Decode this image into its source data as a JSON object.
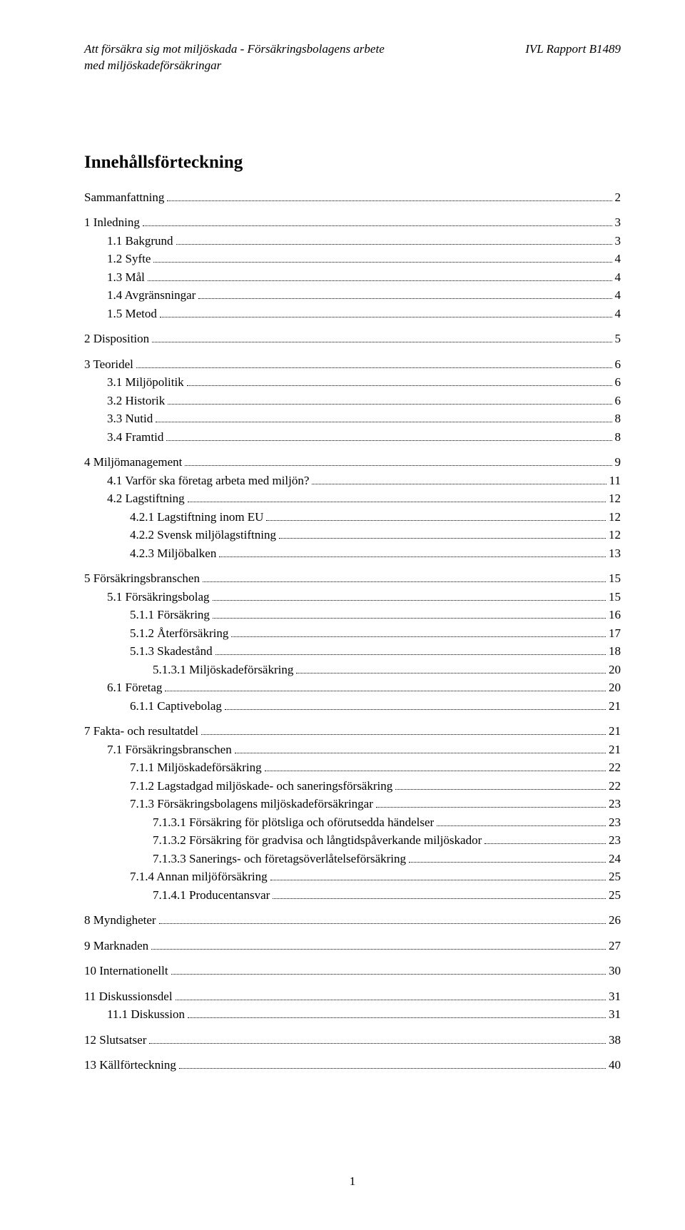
{
  "header": {
    "left_line1": "Att försäkra sig mot miljöskada - Försäkringsbolagens arbete",
    "left_line2": "med miljöskadeförsäkringar",
    "right": "IVL Rapport B1489"
  },
  "title": "Innehållsförteckning",
  "toc": [
    {
      "indent": 0,
      "label": "Sammanfattning",
      "page": "2",
      "gap_before": false
    },
    {
      "indent": 0,
      "label": "1   Inledning",
      "page": "3",
      "gap_before": true
    },
    {
      "indent": 1,
      "label": "1.1   Bakgrund",
      "page": "3",
      "gap_before": false
    },
    {
      "indent": 1,
      "label": "1.2   Syfte",
      "page": "4",
      "gap_before": false
    },
    {
      "indent": 1,
      "label": "1.3   Mål",
      "page": "4",
      "gap_before": false
    },
    {
      "indent": 1,
      "label": "1.4   Avgränsningar",
      "page": "4",
      "gap_before": false
    },
    {
      "indent": 1,
      "label": "1.5   Metod",
      "page": "4",
      "gap_before": false
    },
    {
      "indent": 0,
      "label": "2   Disposition",
      "page": "5",
      "gap_before": true
    },
    {
      "indent": 0,
      "label": "3   Teoridel",
      "page": "6",
      "gap_before": true
    },
    {
      "indent": 1,
      "label": "3.1   Miljöpolitik",
      "page": "6",
      "gap_before": false
    },
    {
      "indent": 1,
      "label": "3.2   Historik",
      "page": "6",
      "gap_before": false
    },
    {
      "indent": 1,
      "label": "3.3   Nutid",
      "page": "8",
      "gap_before": false
    },
    {
      "indent": 1,
      "label": "3.4   Framtid",
      "page": "8",
      "gap_before": false
    },
    {
      "indent": 0,
      "label": "4   Miljömanagement",
      "page": "9",
      "gap_before": true
    },
    {
      "indent": 1,
      "label": "4.1   Varför ska företag arbeta med miljön?",
      "page": "11",
      "gap_before": false
    },
    {
      "indent": 1,
      "label": "4.2   Lagstiftning",
      "page": "12",
      "gap_before": false
    },
    {
      "indent": 2,
      "label": "4.2.1    Lagstiftning inom EU",
      "page": "12",
      "gap_before": false
    },
    {
      "indent": 2,
      "label": "4.2.2    Svensk miljölagstiftning",
      "page": "12",
      "gap_before": false
    },
    {
      "indent": 2,
      "label": "4.2.3    Miljöbalken",
      "page": "13",
      "gap_before": false
    },
    {
      "indent": 0,
      "label": "5   Försäkringsbranschen",
      "page": "15",
      "gap_before": true
    },
    {
      "indent": 1,
      "label": "5.1   Försäkringsbolag",
      "page": "15",
      "gap_before": false
    },
    {
      "indent": 2,
      "label": "5.1.1    Försäkring",
      "page": "16",
      "gap_before": false
    },
    {
      "indent": 2,
      "label": "5.1.2    Återförsäkring",
      "page": "17",
      "gap_before": false
    },
    {
      "indent": 2,
      "label": "5.1.3    Skadestånd",
      "page": "18",
      "gap_before": false
    },
    {
      "indent": 3,
      "label": "5.1.3.1   Miljöskadeförsäkring",
      "page": "20",
      "gap_before": false
    },
    {
      "indent": 1,
      "label": "6.1   Företag",
      "page": "20",
      "gap_before": false
    },
    {
      "indent": 2,
      "label": "6.1.1    Captivebolag",
      "page": "21",
      "gap_before": false
    },
    {
      "indent": 0,
      "label": "7   Fakta- och resultatdel",
      "page": "21",
      "gap_before": true
    },
    {
      "indent": 1,
      "label": "7.1   Försäkringsbranschen",
      "page": "21",
      "gap_before": false
    },
    {
      "indent": 2,
      "label": "7.1.1    Miljöskadeförsäkring",
      "page": "22",
      "gap_before": false
    },
    {
      "indent": 2,
      "label": "7.1.2    Lagstadgad miljöskade- och saneringsförsäkring",
      "page": "22",
      "gap_before": false
    },
    {
      "indent": 2,
      "label": "7.1.3    Försäkringsbolagens miljöskadeförsäkringar",
      "page": "23",
      "gap_before": false
    },
    {
      "indent": 3,
      "label": "7.1.3.1   Försäkring för plötsliga och oförutsedda händelser",
      "page": "23",
      "gap_before": false
    },
    {
      "indent": 3,
      "label": "7.1.3.2   Försäkring för gradvisa och långtidspåverkande miljöskador",
      "page": "23",
      "gap_before": false
    },
    {
      "indent": 3,
      "label": "7.1.3.3   Sanerings- och företagsöverlåtelseförsäkring",
      "page": "24",
      "gap_before": false
    },
    {
      "indent": 2,
      "label": "7.1.4    Annan miljöförsäkring",
      "page": "25",
      "gap_before": false
    },
    {
      "indent": 3,
      "label": "7.1.4.1   Producentansvar",
      "page": "25",
      "gap_before": false
    },
    {
      "indent": 0,
      "label": "8   Myndigheter",
      "page": "26",
      "gap_before": true
    },
    {
      "indent": 0,
      "label": "9   Marknaden",
      "page": "27",
      "gap_before": true
    },
    {
      "indent": 0,
      "label": "10  Internationellt",
      "page": "30",
      "gap_before": true
    },
    {
      "indent": 0,
      "label": "11  Diskussionsdel",
      "page": "31",
      "gap_before": true
    },
    {
      "indent": 1,
      "label": "11.1  Diskussion",
      "page": "31",
      "gap_before": false
    },
    {
      "indent": 0,
      "label": "12  Slutsatser",
      "page": "38",
      "gap_before": true
    },
    {
      "indent": 0,
      "label": "13  Källförteckning",
      "page": "40",
      "gap_before": true
    }
  ],
  "footer_page_number": "1"
}
